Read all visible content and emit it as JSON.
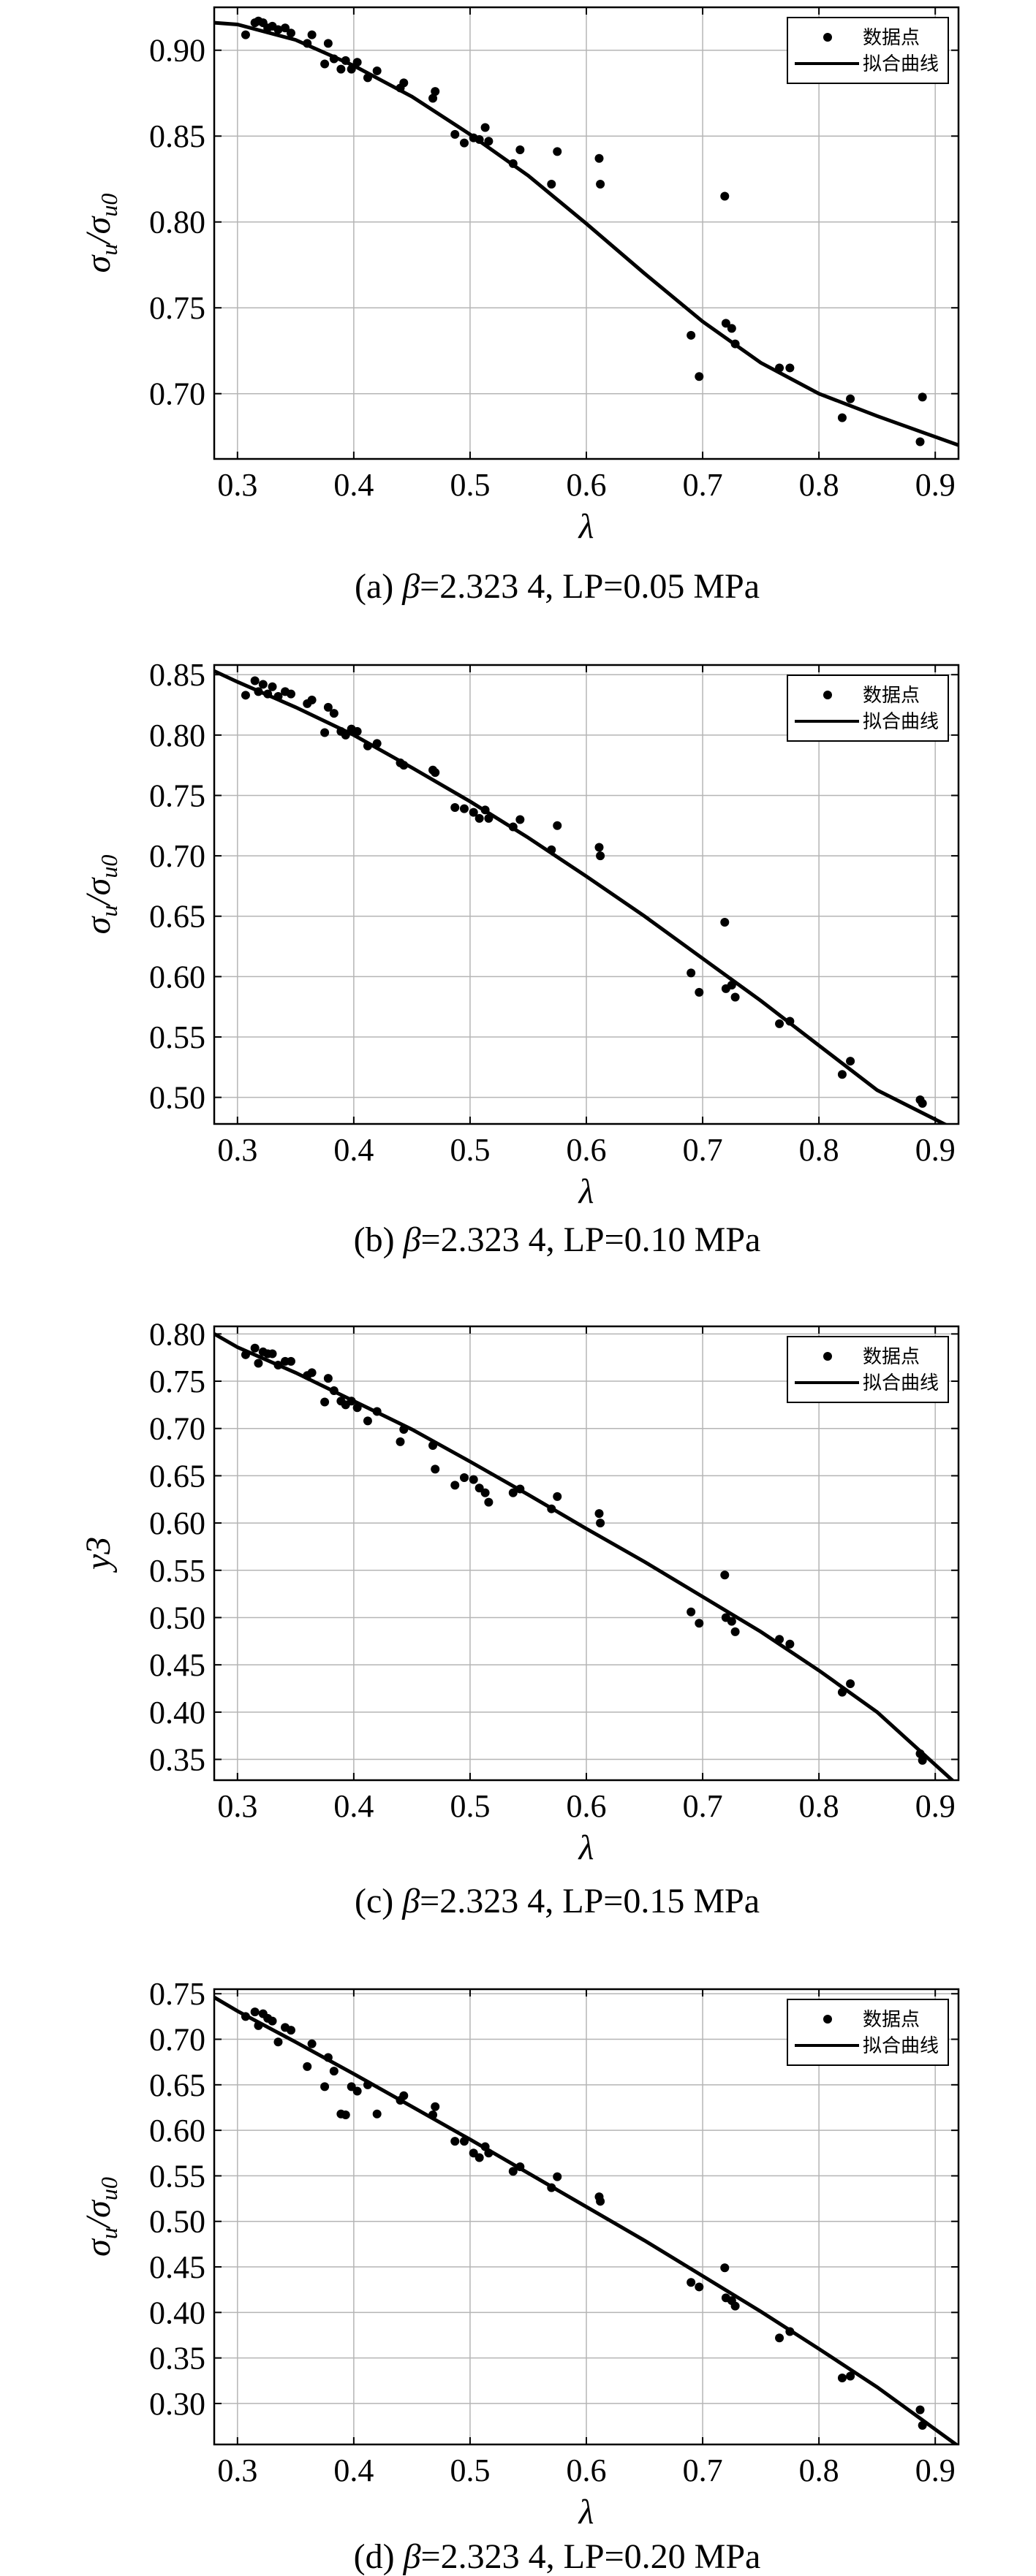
{
  "chart_data": [
    {
      "type": "scatter",
      "title": "",
      "caption": {
        "prefix": "(a) ",
        "beta_symbol": "β",
        "suffix": "=2.323 4, LP=0.05 MPa"
      },
      "xlabel": "λ",
      "ylabel": {
        "main": "σ",
        "sub1": "u",
        "slash": "/σ",
        "sub2": "u0"
      },
      "xlim": [
        0.28,
        0.92
      ],
      "ylim": [
        0.662,
        0.925
      ],
      "xticks": [
        0.3,
        0.4,
        0.5,
        0.6,
        0.7,
        0.8,
        0.9
      ],
      "xtick_labels": [
        "0.3",
        "0.4",
        "0.5",
        "0.6",
        "0.7",
        "0.8",
        "0.9"
      ],
      "yticks": [
        0.7,
        0.75,
        0.8,
        0.85,
        0.9
      ],
      "ytick_labels": [
        "0.70",
        "0.75",
        "0.80",
        "0.85",
        "0.90"
      ],
      "grid": true,
      "legend_position": "top-right",
      "legend": [
        "数据点",
        "拟合曲线"
      ],
      "series": [
        {
          "name": "数据点",
          "kind": "points",
          "x": [
            0.307,
            0.315,
            0.318,
            0.322,
            0.326,
            0.33,
            0.335,
            0.341,
            0.346,
            0.36,
            0.364,
            0.375,
            0.378,
            0.383,
            0.389,
            0.393,
            0.398,
            0.403,
            0.412,
            0.42,
            0.44,
            0.443,
            0.468,
            0.47,
            0.487,
            0.495,
            0.503,
            0.508,
            0.513,
            0.516,
            0.537,
            0.543,
            0.57,
            0.575,
            0.611,
            0.612,
            0.69,
            0.697,
            0.719,
            0.72,
            0.725,
            0.728,
            0.766,
            0.775,
            0.82,
            0.827,
            0.887,
            0.889
          ],
          "y": [
            0.909,
            0.916,
            0.917,
            0.916,
            0.913,
            0.914,
            0.912,
            0.913,
            0.91,
            0.904,
            0.909,
            0.892,
            0.904,
            0.895,
            0.889,
            0.894,
            0.889,
            0.893,
            0.884,
            0.888,
            0.878,
            0.881,
            0.872,
            0.876,
            0.851,
            0.846,
            0.849,
            0.848,
            0.855,
            0.847,
            0.834,
            0.842,
            0.822,
            0.841,
            0.837,
            0.822,
            0.734,
            0.71,
            0.815,
            0.741,
            0.738,
            0.729,
            0.715,
            0.715,
            0.686,
            0.697,
            0.672,
            0.698
          ]
        },
        {
          "name": "拟合曲线",
          "kind": "line",
          "x": [
            0.28,
            0.3,
            0.35,
            0.4,
            0.45,
            0.5,
            0.55,
            0.6,
            0.65,
            0.7,
            0.75,
            0.8,
            0.85,
            0.92
          ],
          "y": [
            0.916,
            0.915,
            0.906,
            0.891,
            0.873,
            0.851,
            0.827,
            0.799,
            0.77,
            0.742,
            0.718,
            0.7,
            0.687,
            0.67
          ]
        }
      ]
    },
    {
      "type": "scatter",
      "title": "",
      "caption": {
        "prefix": "(b) ",
        "beta_symbol": "β",
        "suffix": "=2.323 4, LP=0.10 MPa"
      },
      "xlabel": "λ",
      "ylabel": {
        "main": "σ",
        "sub1": "u",
        "slash": "/σ",
        "sub2": "u0"
      },
      "xlim": [
        0.28,
        0.92
      ],
      "ylim": [
        0.478,
        0.858
      ],
      "xticks": [
        0.3,
        0.4,
        0.5,
        0.6,
        0.7,
        0.8,
        0.9
      ],
      "xtick_labels": [
        "0.3",
        "0.4",
        "0.5",
        "0.6",
        "0.7",
        "0.8",
        "0.9"
      ],
      "yticks": [
        0.5,
        0.55,
        0.6,
        0.65,
        0.7,
        0.75,
        0.8,
        0.85
      ],
      "ytick_labels": [
        "0.50",
        "0.55",
        "0.60",
        "0.65",
        "0.70",
        "0.75",
        "0.80",
        "0.85"
      ],
      "grid": true,
      "legend_position": "top-right",
      "legend": [
        "数据点",
        "拟合曲线"
      ],
      "series": [
        {
          "name": "数据点",
          "kind": "points",
          "x": [
            0.307,
            0.315,
            0.318,
            0.322,
            0.326,
            0.33,
            0.335,
            0.341,
            0.346,
            0.36,
            0.364,
            0.375,
            0.378,
            0.383,
            0.389,
            0.393,
            0.398,
            0.403,
            0.412,
            0.42,
            0.44,
            0.443,
            0.468,
            0.47,
            0.487,
            0.495,
            0.503,
            0.508,
            0.513,
            0.516,
            0.537,
            0.543,
            0.57,
            0.575,
            0.611,
            0.612,
            0.69,
            0.697,
            0.719,
            0.72,
            0.725,
            0.728,
            0.766,
            0.775,
            0.82,
            0.827,
            0.887,
            0.889
          ],
          "y": [
            0.833,
            0.845,
            0.836,
            0.842,
            0.834,
            0.84,
            0.832,
            0.836,
            0.834,
            0.826,
            0.829,
            0.802,
            0.823,
            0.818,
            0.803,
            0.8,
            0.805,
            0.803,
            0.791,
            0.793,
            0.777,
            0.775,
            0.771,
            0.769,
            0.74,
            0.739,
            0.736,
            0.731,
            0.738,
            0.731,
            0.724,
            0.73,
            0.705,
            0.725,
            0.707,
            0.7,
            0.603,
            0.587,
            0.645,
            0.59,
            0.593,
            0.583,
            0.561,
            0.563,
            0.519,
            0.53,
            0.498,
            0.495
          ]
        },
        {
          "name": "拟合曲线",
          "kind": "line",
          "x": [
            0.28,
            0.3,
            0.35,
            0.4,
            0.45,
            0.5,
            0.55,
            0.6,
            0.65,
            0.7,
            0.75,
            0.8,
            0.85,
            0.92
          ],
          "y": [
            0.853,
            0.844,
            0.823,
            0.8,
            0.773,
            0.745,
            0.715,
            0.683,
            0.65,
            0.615,
            0.58,
            0.543,
            0.506,
            0.472
          ]
        }
      ]
    },
    {
      "type": "scatter",
      "title": "",
      "caption": {
        "prefix": "(c) ",
        "beta_symbol": "β",
        "suffix": "=2.323 4, LP=0.15 MPa"
      },
      "xlabel": "λ",
      "ylabel": {
        "main": "y3",
        "sub1": "",
        "slash": "",
        "sub2": ""
      },
      "xlim": [
        0.28,
        0.92
      ],
      "ylim": [
        0.328,
        0.808
      ],
      "xticks": [
        0.3,
        0.4,
        0.5,
        0.6,
        0.7,
        0.8,
        0.9
      ],
      "xtick_labels": [
        "0.3",
        "0.4",
        "0.5",
        "0.6",
        "0.7",
        "0.8",
        "0.9"
      ],
      "yticks": [
        0.35,
        0.4,
        0.45,
        0.5,
        0.55,
        0.6,
        0.65,
        0.7,
        0.75,
        0.8
      ],
      "ytick_labels": [
        "0.35",
        "0.40",
        "0.45",
        "0.50",
        "0.55",
        "0.60",
        "0.65",
        "0.70",
        "0.75",
        "0.80"
      ],
      "grid": true,
      "legend_position": "top-right",
      "legend": [
        "数据点",
        "拟合曲线"
      ],
      "series": [
        {
          "name": "数据点",
          "kind": "points",
          "x": [
            0.307,
            0.315,
            0.318,
            0.322,
            0.326,
            0.33,
            0.335,
            0.341,
            0.346,
            0.36,
            0.364,
            0.375,
            0.378,
            0.383,
            0.389,
            0.393,
            0.398,
            0.403,
            0.412,
            0.42,
            0.44,
            0.443,
            0.468,
            0.47,
            0.487,
            0.495,
            0.503,
            0.508,
            0.513,
            0.516,
            0.537,
            0.543,
            0.57,
            0.575,
            0.611,
            0.612,
            0.69,
            0.697,
            0.719,
            0.72,
            0.725,
            0.728,
            0.766,
            0.775,
            0.82,
            0.827,
            0.887,
            0.889
          ],
          "y": [
            0.778,
            0.785,
            0.769,
            0.781,
            0.779,
            0.779,
            0.767,
            0.771,
            0.771,
            0.756,
            0.759,
            0.728,
            0.753,
            0.74,
            0.729,
            0.725,
            0.729,
            0.722,
            0.708,
            0.718,
            0.686,
            0.699,
            0.682,
            0.657,
            0.64,
            0.648,
            0.646,
            0.637,
            0.632,
            0.622,
            0.632,
            0.636,
            0.615,
            0.628,
            0.61,
            0.6,
            0.506,
            0.494,
            0.545,
            0.5,
            0.496,
            0.485,
            0.477,
            0.472,
            0.421,
            0.43,
            0.356,
            0.349
          ]
        },
        {
          "name": "拟合曲线",
          "kind": "line",
          "x": [
            0.28,
            0.3,
            0.35,
            0.4,
            0.45,
            0.5,
            0.55,
            0.6,
            0.65,
            0.7,
            0.75,
            0.8,
            0.85,
            0.92
          ],
          "y": [
            0.8,
            0.786,
            0.759,
            0.729,
            0.699,
            0.665,
            0.63,
            0.594,
            0.559,
            0.522,
            0.485,
            0.444,
            0.4,
            0.322
          ]
        }
      ]
    },
    {
      "type": "scatter",
      "title": "",
      "caption": {
        "prefix": "(d) ",
        "beta_symbol": "β",
        "suffix": "=2.323 4, LP=0.20 MPa"
      },
      "xlabel": "λ",
      "ylabel": {
        "main": "σ",
        "sub1": "u",
        "slash": "/σ",
        "sub2": "u0"
      },
      "xlim": [
        0.28,
        0.92
      ],
      "ylim": [
        0.255,
        0.755
      ],
      "xticks": [
        0.3,
        0.4,
        0.5,
        0.6,
        0.7,
        0.8,
        0.9
      ],
      "xtick_labels": [
        "0.3",
        "0.4",
        "0.5",
        "0.6",
        "0.7",
        "0.8",
        "0.9"
      ],
      "yticks": [
        0.3,
        0.35,
        0.4,
        0.45,
        0.5,
        0.55,
        0.6,
        0.65,
        0.7,
        0.75
      ],
      "ytick_labels": [
        "0.30",
        "0.35",
        "0.40",
        "0.45",
        "0.50",
        "0.55",
        "0.60",
        "0.65",
        "0.70",
        "0.75"
      ],
      "grid": true,
      "legend_position": "top-right",
      "legend": [
        "数据点",
        "拟合曲线"
      ],
      "series": [
        {
          "name": "数据点",
          "kind": "points",
          "x": [
            0.307,
            0.315,
            0.318,
            0.322,
            0.326,
            0.33,
            0.335,
            0.341,
            0.346,
            0.36,
            0.364,
            0.375,
            0.378,
            0.383,
            0.389,
            0.393,
            0.398,
            0.403,
            0.412,
            0.42,
            0.44,
            0.443,
            0.468,
            0.47,
            0.487,
            0.495,
            0.503,
            0.508,
            0.513,
            0.516,
            0.537,
            0.543,
            0.57,
            0.575,
            0.611,
            0.612,
            0.69,
            0.697,
            0.719,
            0.72,
            0.725,
            0.728,
            0.766,
            0.775,
            0.82,
            0.827,
            0.887,
            0.889
          ],
          "y": [
            0.725,
            0.73,
            0.715,
            0.728,
            0.723,
            0.72,
            0.697,
            0.713,
            0.71,
            0.67,
            0.695,
            0.648,
            0.68,
            0.665,
            0.618,
            0.617,
            0.648,
            0.643,
            0.65,
            0.618,
            0.633,
            0.638,
            0.617,
            0.626,
            0.588,
            0.588,
            0.575,
            0.57,
            0.582,
            0.575,
            0.555,
            0.56,
            0.537,
            0.549,
            0.527,
            0.522,
            0.433,
            0.428,
            0.449,
            0.416,
            0.413,
            0.407,
            0.372,
            0.379,
            0.328,
            0.33,
            0.293,
            0.276
          ]
        },
        {
          "name": "拟合曲线",
          "kind": "line",
          "x": [
            0.28,
            0.3,
            0.35,
            0.4,
            0.45,
            0.5,
            0.55,
            0.6,
            0.65,
            0.7,
            0.75,
            0.8,
            0.85,
            0.92
          ],
          "y": [
            0.746,
            0.731,
            0.697,
            0.662,
            0.626,
            0.59,
            0.553,
            0.516,
            0.479,
            0.44,
            0.401,
            0.36,
            0.318,
            0.253
          ]
        }
      ]
    }
  ]
}
